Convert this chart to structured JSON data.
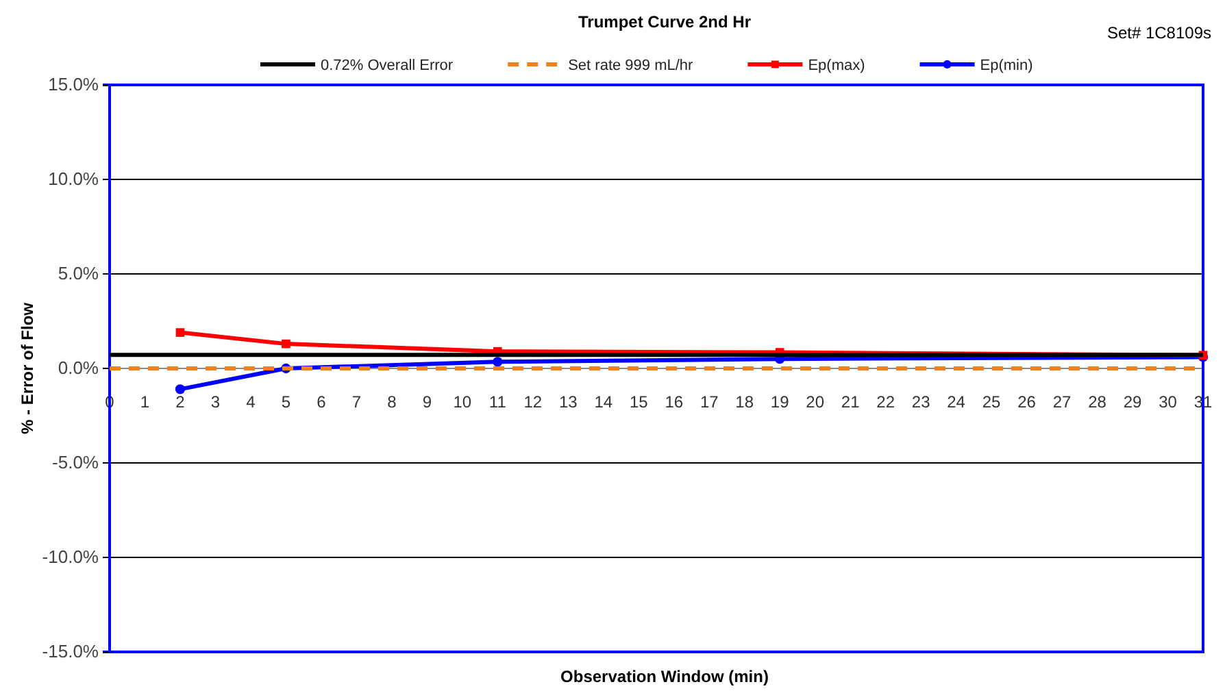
{
  "chart_data": {
    "type": "line",
    "title": "Trumpet Curve 2nd Hr",
    "xlabel": "Observation Window (min)",
    "ylabel": "% - Error of Flow",
    "annotations": [
      "Set# 1C8109s"
    ],
    "xlim": [
      0,
      31
    ],
    "xticks": [
      0,
      1,
      2,
      3,
      4,
      5,
      6,
      7,
      8,
      9,
      10,
      11,
      12,
      13,
      14,
      15,
      16,
      17,
      18,
      19,
      20,
      21,
      22,
      23,
      24,
      25,
      26,
      27,
      28,
      29,
      30,
      31
    ],
    "ylim": [
      -15,
      15
    ],
    "yticks": [
      {
        "value": -15,
        "label": "-15.0%"
      },
      {
        "value": -10,
        "label": "-10.0%"
      },
      {
        "value": -5,
        "label": "-5.0%"
      },
      {
        "value": 0,
        "label": "0.0%"
      },
      {
        "value": 5,
        "label": "5.0%"
      },
      {
        "value": 10,
        "label": "10.0%"
      },
      {
        "value": 15,
        "label": "15.0%"
      }
    ],
    "grid": "y",
    "legend": "top",
    "series": [
      {
        "name": "0.72% Overall Error",
        "color": "#000000",
        "x": [
          0,
          31
        ],
        "values": [
          0.72,
          0.72
        ],
        "marker": "none",
        "line_style": "solid"
      },
      {
        "name": "Set rate 999 mL/hr",
        "color": "#f07f1e",
        "x": [
          0,
          31
        ],
        "values": [
          0,
          0
        ],
        "marker": "none",
        "line_style": "dashed"
      },
      {
        "name": "Ep(max)",
        "color": "#ff0000",
        "x": [
          2,
          5,
          11,
          19,
          31
        ],
        "values": [
          1.9,
          1.3,
          0.9,
          0.85,
          0.7
        ],
        "marker": "square",
        "line_style": "solid"
      },
      {
        "name": "Ep(min)",
        "color": "#0000ff",
        "x": [
          2,
          5,
          11,
          19,
          31
        ],
        "values": [
          -1.1,
          0,
          0.35,
          0.5,
          0.6
        ],
        "marker": "circle",
        "line_style": "solid"
      }
    ]
  }
}
